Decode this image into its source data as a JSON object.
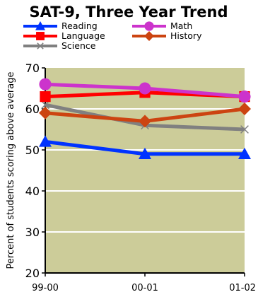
{
  "chart_data": {
    "type": "line",
    "title": "SAT-9, Three Year Trend",
    "xlabel": "",
    "ylabel": "Percent of students scoring above average",
    "categories": [
      "99-00",
      "00-01",
      "01-02"
    ],
    "ylim": [
      20,
      70
    ],
    "yticks": [
      20,
      30,
      40,
      50,
      60,
      70
    ],
    "grid": true,
    "plot_background": "#cccc99",
    "legend_placement": "top",
    "series": [
      {
        "name": "Reading",
        "values": [
          52,
          49,
          49
        ],
        "color": "#0033ff",
        "marker": "triangle"
      },
      {
        "name": "Math",
        "values": [
          66,
          65,
          63
        ],
        "color": "#cc33cc",
        "marker": "circle"
      },
      {
        "name": "Language",
        "values": [
          63,
          64,
          63
        ],
        "color": "#ff0000",
        "marker": "square"
      },
      {
        "name": "History",
        "values": [
          59,
          57,
          60
        ],
        "color": "#cc4411",
        "marker": "diamond"
      },
      {
        "name": "Science",
        "values": [
          61,
          56,
          55
        ],
        "color": "#808080",
        "marker": "x"
      }
    ]
  }
}
